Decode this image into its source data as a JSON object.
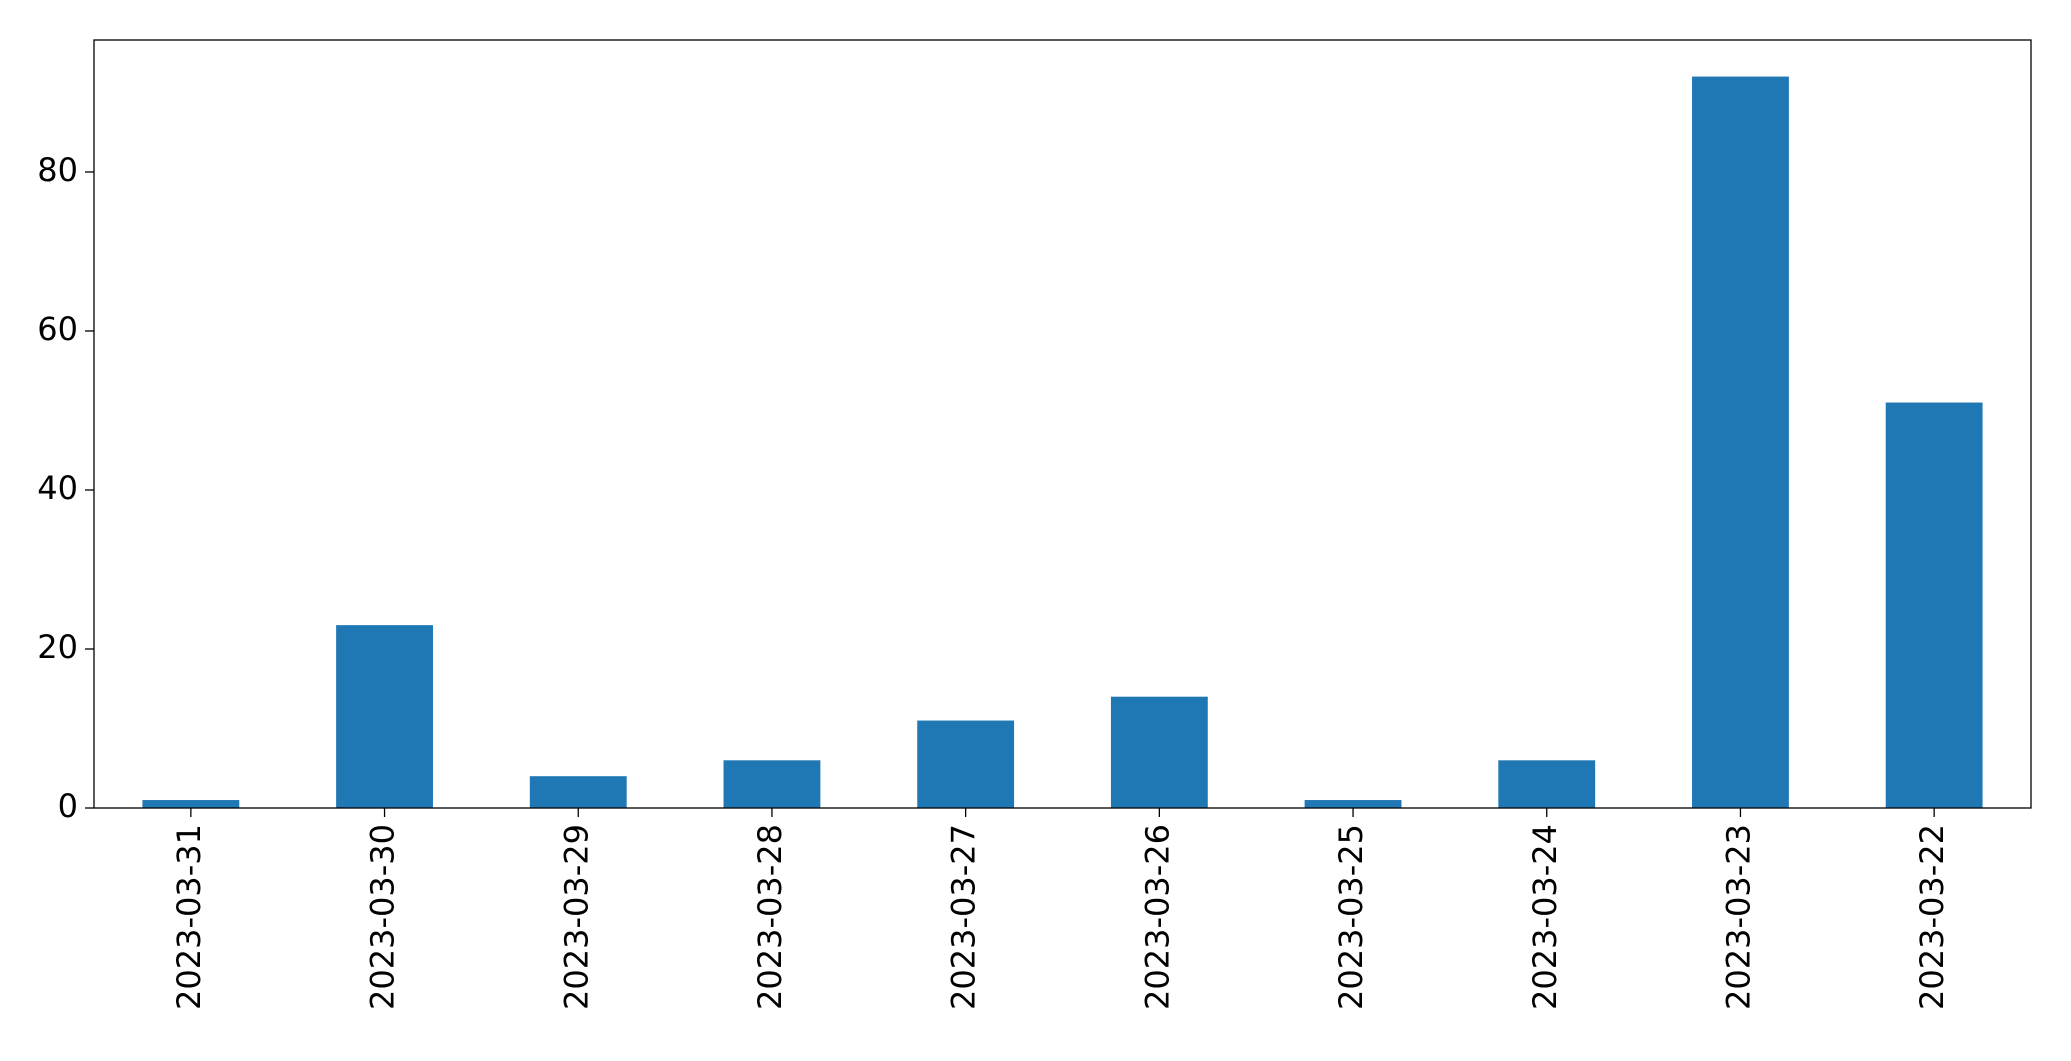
{
  "chart_data": {
    "type": "bar",
    "categories": [
      "2023-03-31",
      "2023-03-30",
      "2023-03-29",
      "2023-03-28",
      "2023-03-27",
      "2023-03-26",
      "2023-03-25",
      "2023-03-24",
      "2023-03-23",
      "2023-03-22"
    ],
    "values": [
      1,
      23,
      4,
      6,
      11,
      14,
      1,
      6,
      92,
      51
    ],
    "color": "#1f77b4",
    "ylim": [
      0,
      96.6
    ],
    "yticks": [
      0,
      20,
      40,
      60,
      80
    ],
    "grid": false
  }
}
